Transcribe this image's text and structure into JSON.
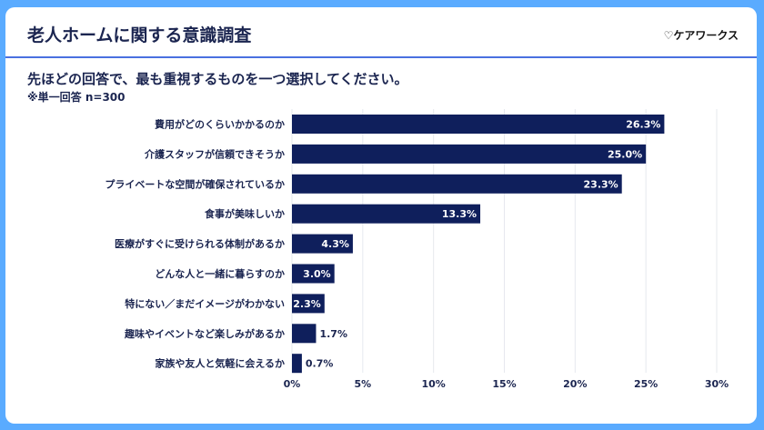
{
  "header": {
    "title": "老人ホームに関する意識調査",
    "logo": "♡ケアワークス"
  },
  "question": "先ほどの回答で、最も重視するものを一つ選択してください。",
  "note": "※単一回答 n=300",
  "colors": {
    "bar": "#0f1f5c",
    "background": "#5aabff",
    "grid": "#e6e8ee"
  },
  "chart_data": {
    "type": "bar",
    "orientation": "horizontal",
    "categories": [
      "費用がどのくらいかかるのか",
      "介護スタッフが信頼できそうか",
      "プライベートな空間が確保されているか",
      "食事が美味しいか",
      "医療がすぐに受けられる体制があるか",
      "どんな人と一緒に暮らすのか",
      "特にない／まだイメージがわかない",
      "趣味やイベントなど楽しみがあるか",
      "家族や友人と気軽に会えるか"
    ],
    "values": [
      26.3,
      25.0,
      23.3,
      13.3,
      4.3,
      3.0,
      2.3,
      1.7,
      0.7
    ],
    "data_labels": [
      "26.3%",
      "25.0%",
      "23.3%",
      "13.3%",
      "4.3%",
      "3.0%",
      "2.3%",
      "1.7%",
      "0.7%"
    ],
    "xlim": [
      0,
      30
    ],
    "xticks": [
      0,
      5,
      10,
      15,
      20,
      25,
      30
    ],
    "xtick_labels": [
      "0%",
      "5%",
      "10%",
      "15%",
      "20%",
      "25%",
      "30%"
    ],
    "grid": true,
    "legend": "none"
  }
}
